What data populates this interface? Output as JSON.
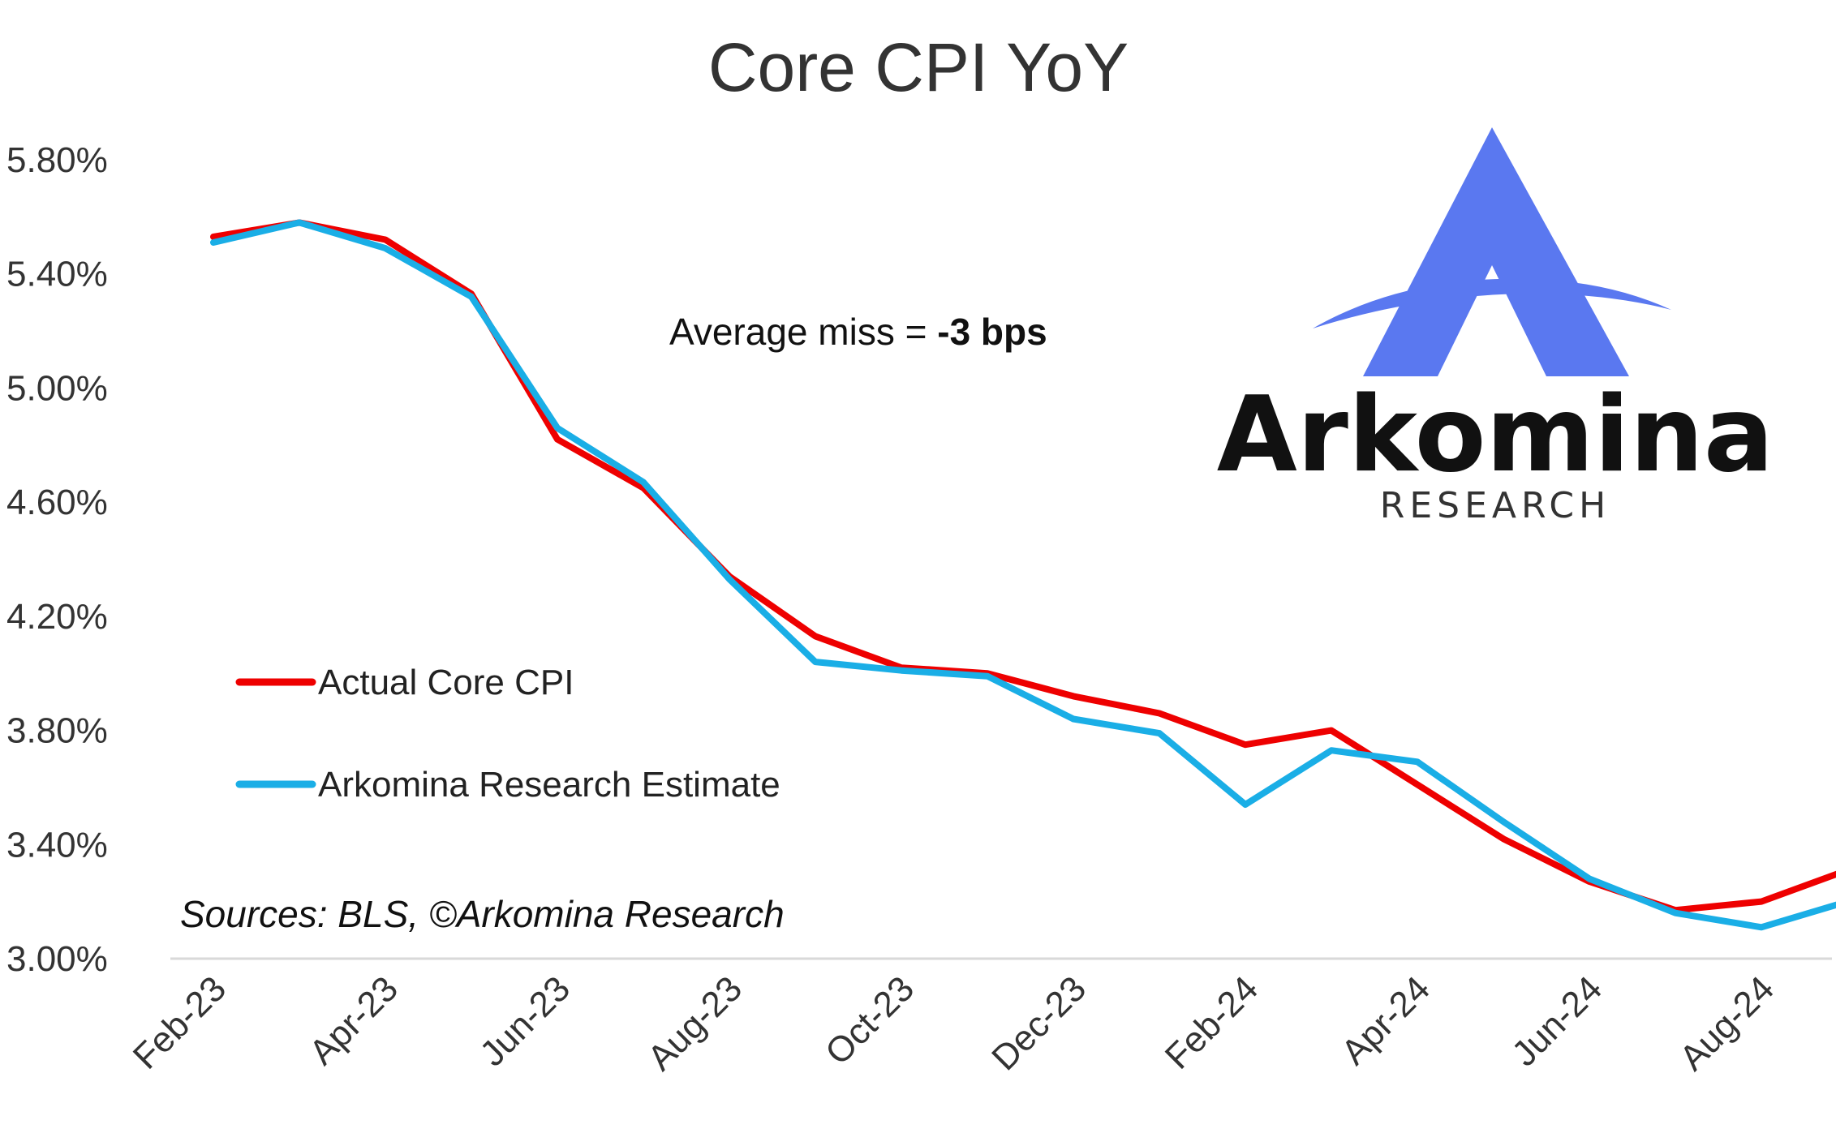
{
  "chart_data": {
    "type": "line",
    "title": "Core CPI YoY",
    "xlabel": "",
    "ylabel": "",
    "ylim": [
      3.0,
      5.8
    ],
    "yticks": [
      "5.80%",
      "5.40%",
      "5.00%",
      "4.60%",
      "4.20%",
      "3.80%",
      "3.40%",
      "3.00%"
    ],
    "ytick_values": [
      5.8,
      5.4,
      5.0,
      4.6,
      4.2,
      3.8,
      3.4,
      3.0
    ],
    "x": [
      "Feb-23",
      "Mar-23",
      "Apr-23",
      "May-23",
      "Jun-23",
      "Jul-23",
      "Aug-23",
      "Sep-23",
      "Oct-23",
      "Nov-23",
      "Dec-23",
      "Jan-24",
      "Feb-24",
      "Mar-24",
      "Apr-24",
      "May-24",
      "Jun-24",
      "Jul-24",
      "Aug-24",
      "Sep-24"
    ],
    "xticks": [
      "Feb-23",
      "Apr-23",
      "Jun-23",
      "Aug-23",
      "Oct-23",
      "Dec-23",
      "Feb-24",
      "Apr-24",
      "Jun-24",
      "Aug-24"
    ],
    "series": [
      {
        "name": "Actual Core CPI",
        "color": "#ee0000",
        "values": [
          5.53,
          5.58,
          5.52,
          5.33,
          4.82,
          4.65,
          4.34,
          4.13,
          4.02,
          4.0,
          3.92,
          3.86,
          3.75,
          3.8,
          3.61,
          3.42,
          3.27,
          3.17,
          3.2,
          3.31
        ]
      },
      {
        "name": "Arkomina Research Estimate",
        "color": "#1aaee6",
        "values": [
          5.51,
          5.58,
          5.49,
          5.32,
          4.86,
          4.67,
          4.33,
          4.04,
          4.01,
          3.99,
          3.84,
          3.79,
          3.54,
          3.73,
          3.69,
          3.48,
          3.28,
          3.16,
          3.11,
          3.2
        ]
      }
    ],
    "grid": false,
    "legend_position": "left",
    "annotation": {
      "prefix": "Average miss = ",
      "value": "-3 bps"
    },
    "source": "Sources: BLS, ©Arkomina Research"
  },
  "logo": {
    "name": "Arkomina",
    "subtitle": "RESEARCH",
    "color": "#5a78f0"
  }
}
